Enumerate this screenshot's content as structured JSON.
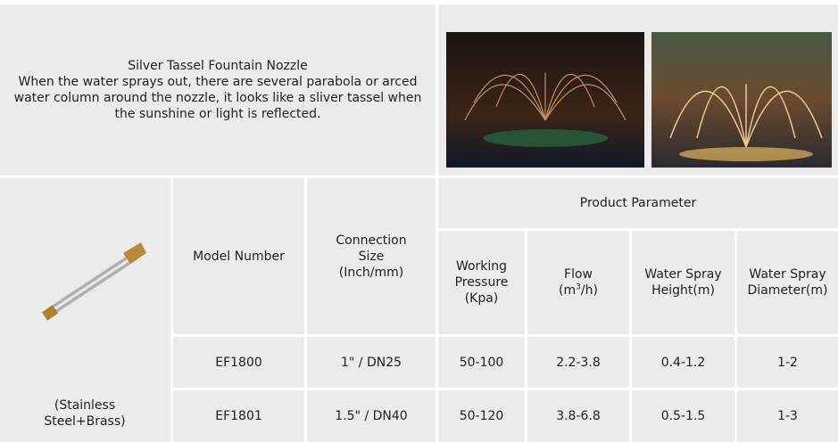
{
  "intro": {
    "title": "Silver Tassel Fountain Nozzle",
    "description": "When the water sprays out, there are several parabola or arced water column around the nozzle, it looks like a sliver tassel when the sunshine or light is reflected."
  },
  "material": "(Stainless Steel+Brass)",
  "table": {
    "group_header": "Product Parameter",
    "headers": [
      "Model Number",
      "Connection Size (Inch/mm)",
      "Working Pressure (Kpa)",
      "Water Spray Height(m)",
      "Water Spray Diameter(m)"
    ],
    "flow_header": {
      "label": "Flow",
      "unit_base": "(m",
      "unit_sup": "3",
      "unit_rest": "/h)"
    },
    "rows": [
      [
        "EF1800",
        "1\" / DN25",
        "50-100",
        "2.2-3.8",
        "0.4-1.2",
        "1-2"
      ],
      [
        "EF1801",
        "1.5\" / DN40",
        "50-120",
        "3.8-6.8",
        "0.5-1.5",
        "1-3"
      ]
    ]
  }
}
